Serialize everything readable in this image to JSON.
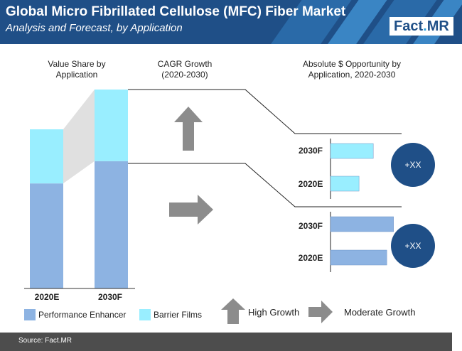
{
  "header": {
    "title": "Global Micro Fibrillated Cellulose (MFC) Fiber Market",
    "subtitle": "Analysis and Forecast, by Application",
    "logo_part1": "Fact",
    "logo_dot": ".",
    "logo_part2": "MR"
  },
  "columns": {
    "value_share": "Value Share by Application",
    "cagr": "CAGR Growth (2020-2030)",
    "opportunity": "Absolute $ Opportunity by Application, 2020-2030"
  },
  "colors": {
    "performance_enhancer": "#8db3e2",
    "barrier_films": "#99eeff",
    "circle": "#1f4f87",
    "arrow": "#8c8c8c",
    "header": "#1f4f87"
  },
  "chart_data": [
    {
      "type": "bar",
      "stacked": true,
      "categories": [
        "2020E",
        "2030F"
      ],
      "series": [
        {
          "name": "Performance Enhancer",
          "values": [
            0.66,
            0.64
          ]
        },
        {
          "name": "Barrier Films",
          "values": [
            0.34,
            0.36
          ]
        }
      ],
      "ylim": [
        0,
        1
      ]
    },
    {
      "type": "bar",
      "orientation": "horizontal",
      "segment": "Barrier Films",
      "categories": [
        "2030F",
        "2020E"
      ],
      "values": [
        57,
        38
      ],
      "xlim": [
        0,
        90
      ],
      "opportunity_label": "+XX"
    },
    {
      "type": "bar",
      "orientation": "horizontal",
      "segment": "Performance Enhancer",
      "categories": [
        "2030F",
        "2020E"
      ],
      "values": [
        84,
        75
      ],
      "xlim": [
        0,
        90
      ],
      "opportunity_label": "+XX"
    }
  ],
  "growth_indicators": {
    "barrier_films": "High Growth",
    "performance_enhancer": "Moderate Growth"
  },
  "legend": {
    "performance_enhancer": "Performance Enhancer",
    "barrier_films": "Barrier Films",
    "high_growth": "High Growth",
    "moderate_growth": "Moderate Growth"
  },
  "footer": {
    "source": "Source: Fact.MR"
  }
}
